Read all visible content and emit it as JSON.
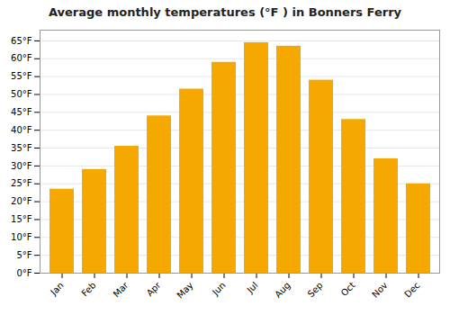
{
  "chart_data": {
    "type": "bar",
    "title": "Average monthly temperatures (°F ) in Bonners Ferry",
    "categories": [
      "Jan",
      "Feb",
      "Mar",
      "Apr",
      "May",
      "Jun",
      "Jul",
      "Aug",
      "Sep",
      "Oct",
      "Nov",
      "Dec"
    ],
    "values": [
      23.5,
      29.0,
      35.5,
      44.0,
      51.5,
      59.0,
      64.5,
      63.5,
      54.0,
      43.0,
      32.0,
      25.0
    ],
    "color": "#F5A800",
    "ylim": [
      0,
      68
    ],
    "yticks": [
      {
        "value": 0,
        "label": "0°F"
      },
      {
        "value": 5,
        "label": "5°F"
      },
      {
        "value": 10,
        "label": "10°F"
      },
      {
        "value": 15,
        "label": "15°F"
      },
      {
        "value": 20,
        "label": "20°F"
      },
      {
        "value": 25,
        "label": "25°F"
      },
      {
        "value": 30,
        "label": "30°F"
      },
      {
        "value": 35,
        "label": "35°F"
      },
      {
        "value": 40,
        "label": "40°F"
      },
      {
        "value": 45,
        "label": "45°F"
      },
      {
        "value": 50,
        "label": "50°F"
      },
      {
        "value": 55,
        "label": "55°F"
      },
      {
        "value": 60,
        "label": "60°F"
      },
      {
        "value": 65,
        "label": "65°F"
      }
    ],
    "grid": true
  }
}
